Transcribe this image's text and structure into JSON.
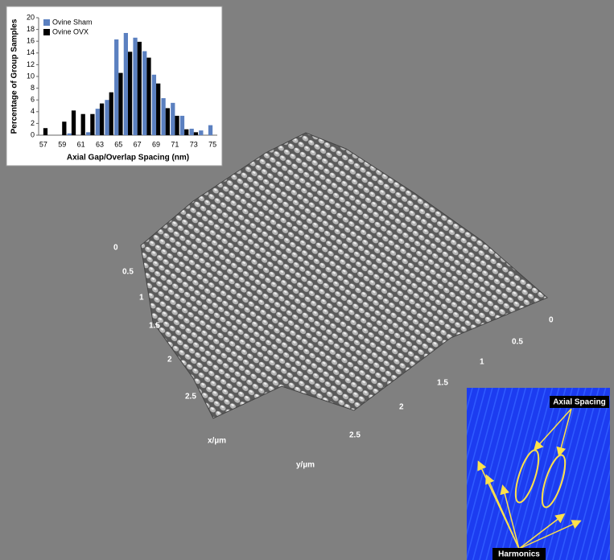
{
  "chart_data": {
    "type": "bar",
    "x_label": "Axial Gap/Overlap Spacing (nm)",
    "y_label": "Percentage of Group Samples",
    "categories": [
      "57",
      null,
      "59",
      null,
      "61",
      null,
      "63",
      null,
      "65",
      null,
      "67",
      null,
      "69",
      null,
      "71",
      null,
      "73",
      null,
      "75"
    ],
    "series": [
      {
        "name": "Ovine Sham",
        "color": "#5b80c0",
        "values": [
          0,
          0,
          0,
          0.3,
          0,
          0.5,
          4.5,
          6.0,
          16.3,
          17.4,
          16.6,
          14.3,
          10.3,
          6.3,
          5.5,
          3.3,
          1.1,
          0.8,
          1.7
        ]
      },
      {
        "name": "Ovine OVX",
        "color": "#000000",
        "values": [
          1.2,
          0,
          2.3,
          4.2,
          3.6,
          3.6,
          5.4,
          7.3,
          10.6,
          14.2,
          15.9,
          13.2,
          8.8,
          4.6,
          3.3,
          1.0,
          0.5,
          0,
          0
        ]
      }
    ],
    "ylim": [
      0,
      20
    ],
    "yticks": [
      0,
      2,
      4,
      6,
      8,
      10,
      12,
      14,
      16,
      18,
      20
    ],
    "legend": "upper-left"
  },
  "surface": {
    "x_label": "x/µm",
    "y_label": "y/µm",
    "x_ticks": [
      "0",
      "0.5",
      "1",
      "1.5",
      "2",
      "2.5"
    ],
    "y_ticks": [
      "0",
      "0.5",
      "1",
      "1.5",
      "2",
      "2.5"
    ]
  },
  "fft": {
    "axial_label": "Axial Spacing",
    "harmonics_label": "Harmonics"
  }
}
